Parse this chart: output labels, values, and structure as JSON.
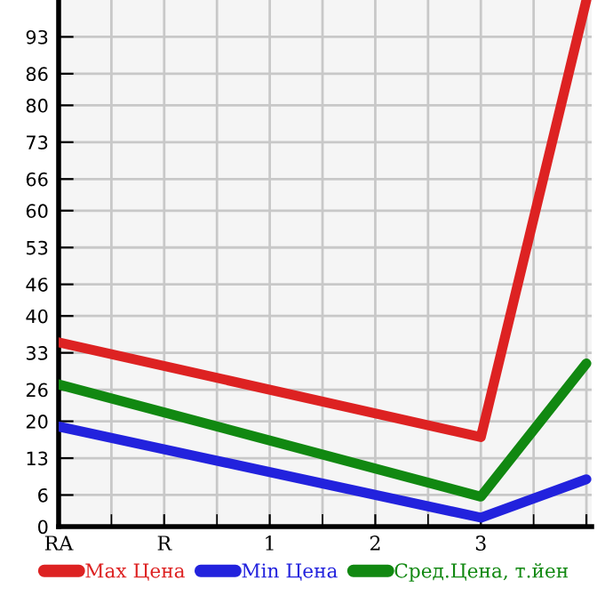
{
  "chart_data": {
    "type": "line",
    "categories": [
      "RA",
      "R",
      "1",
      "2",
      "3",
      null
    ],
    "series": [
      {
        "name": "Max Цена",
        "color": "#dd2222",
        "values": [
          35,
          null,
          null,
          null,
          17,
          100
        ]
      },
      {
        "name": "Min Цена",
        "color": "#2222dd",
        "values": [
          19,
          null,
          null,
          null,
          1.7,
          9
        ]
      },
      {
        "name": "Сред.Цена, т.йен",
        "color": "#118811",
        "values": [
          27,
          null,
          null,
          null,
          5.7,
          31
        ]
      }
    ],
    "ylim": [
      0,
      100
    ],
    "yticks": [
      0,
      6,
      13,
      20,
      26,
      33,
      40,
      46,
      53,
      60,
      66,
      73,
      80,
      86,
      93
    ],
    "grid": true,
    "legend": "bottom",
    "marker": "none",
    "line_style": "solid"
  }
}
